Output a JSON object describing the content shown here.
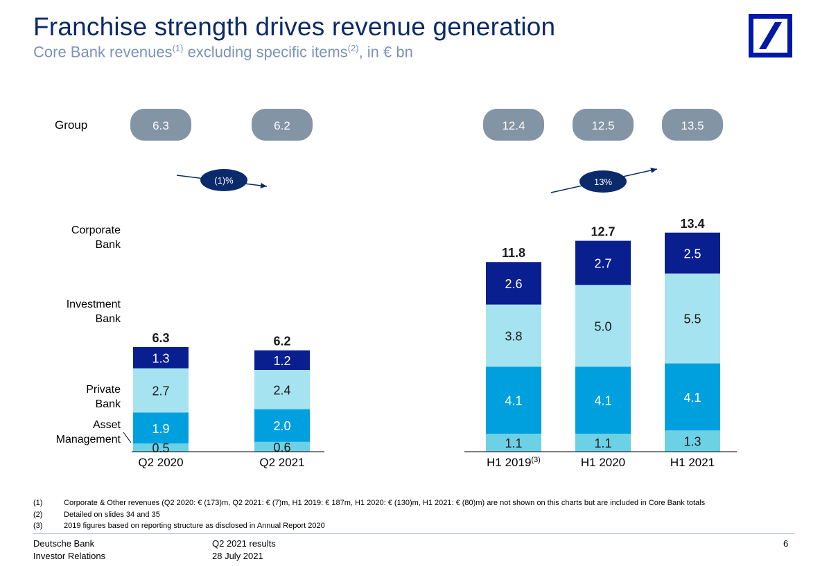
{
  "title": "Franchise strength drives revenue generation",
  "subtitle": {
    "part1": "Core Bank revenues",
    "sup1": "(1)",
    "part2": " excluding specific items",
    "sup2": "(2)",
    "part3": ", in € bn"
  },
  "group_label": "Group",
  "segment_labels": {
    "corporate": [
      "Corporate",
      "Bank"
    ],
    "investment": [
      "Investment",
      "Bank"
    ],
    "private": [
      "Private",
      "Bank"
    ],
    "asset": [
      "Asset",
      "Management"
    ]
  },
  "colors": {
    "corporate_bank": "#0a1f8f",
    "investment_bank": "#a5e3f0",
    "private_bank": "#00a0de",
    "asset_management": "#6dd1e6",
    "group_pill": "#8394a5",
    "growth_oval": "#0b2a6b"
  },
  "chart_data": [
    {
      "type": "bar",
      "stacked": true,
      "categories": [
        "Q2 2020",
        "Q2 2021"
      ],
      "series": [
        {
          "name": "Asset Management",
          "values": [
            0.5,
            0.6
          ]
        },
        {
          "name": "Private Bank",
          "values": [
            1.9,
            2.0
          ]
        },
        {
          "name": "Investment Bank",
          "values": [
            2.7,
            2.4
          ]
        },
        {
          "name": "Corporate Bank",
          "values": [
            1.3,
            1.2
          ]
        }
      ],
      "totals": [
        "6.3",
        "6.2"
      ],
      "group_totals": [
        "6.3",
        "6.2"
      ],
      "growth_label": "(1)%",
      "growth_direction": "down"
    },
    {
      "type": "bar",
      "stacked": true,
      "categories": [
        "H1 2019",
        "H1 2020",
        "H1 2021"
      ],
      "category_superscripts": [
        "(3)",
        "",
        ""
      ],
      "series": [
        {
          "name": "Asset Management",
          "values": [
            1.1,
            1.1,
            1.3
          ]
        },
        {
          "name": "Private Bank",
          "values": [
            4.1,
            4.1,
            4.1
          ]
        },
        {
          "name": "Investment Bank",
          "values": [
            3.8,
            5.0,
            5.5
          ]
        },
        {
          "name": "Corporate Bank",
          "values": [
            2.6,
            2.7,
            2.5
          ]
        }
      ],
      "totals": [
        "11.8",
        "12.7",
        "13.4"
      ],
      "group_totals": [
        "12.4",
        "12.5",
        "13.5"
      ],
      "growth_label": "13%",
      "growth_direction": "up"
    }
  ],
  "footnotes": [
    {
      "num": "(1)",
      "text": "Corporate & Other revenues (Q2 2020: € (173)m, Q2 2021: € (7)m, H1 2019: € 187m, H1 2020: € (130)m, H1 2021: € (80)m) are not shown on this charts but are included in Core Bank totals"
    },
    {
      "num": "(2)",
      "text": "Detailed on slides 34 and 35"
    },
    {
      "num": "(3)",
      "text": "2019 figures based on reporting structure as disclosed in Annual Report 2020"
    }
  ],
  "footer": {
    "company": "Deutsche Bank",
    "department": "Investor Relations",
    "report": "Q2 2021 results",
    "date": "28 July 2021",
    "page": "6"
  }
}
